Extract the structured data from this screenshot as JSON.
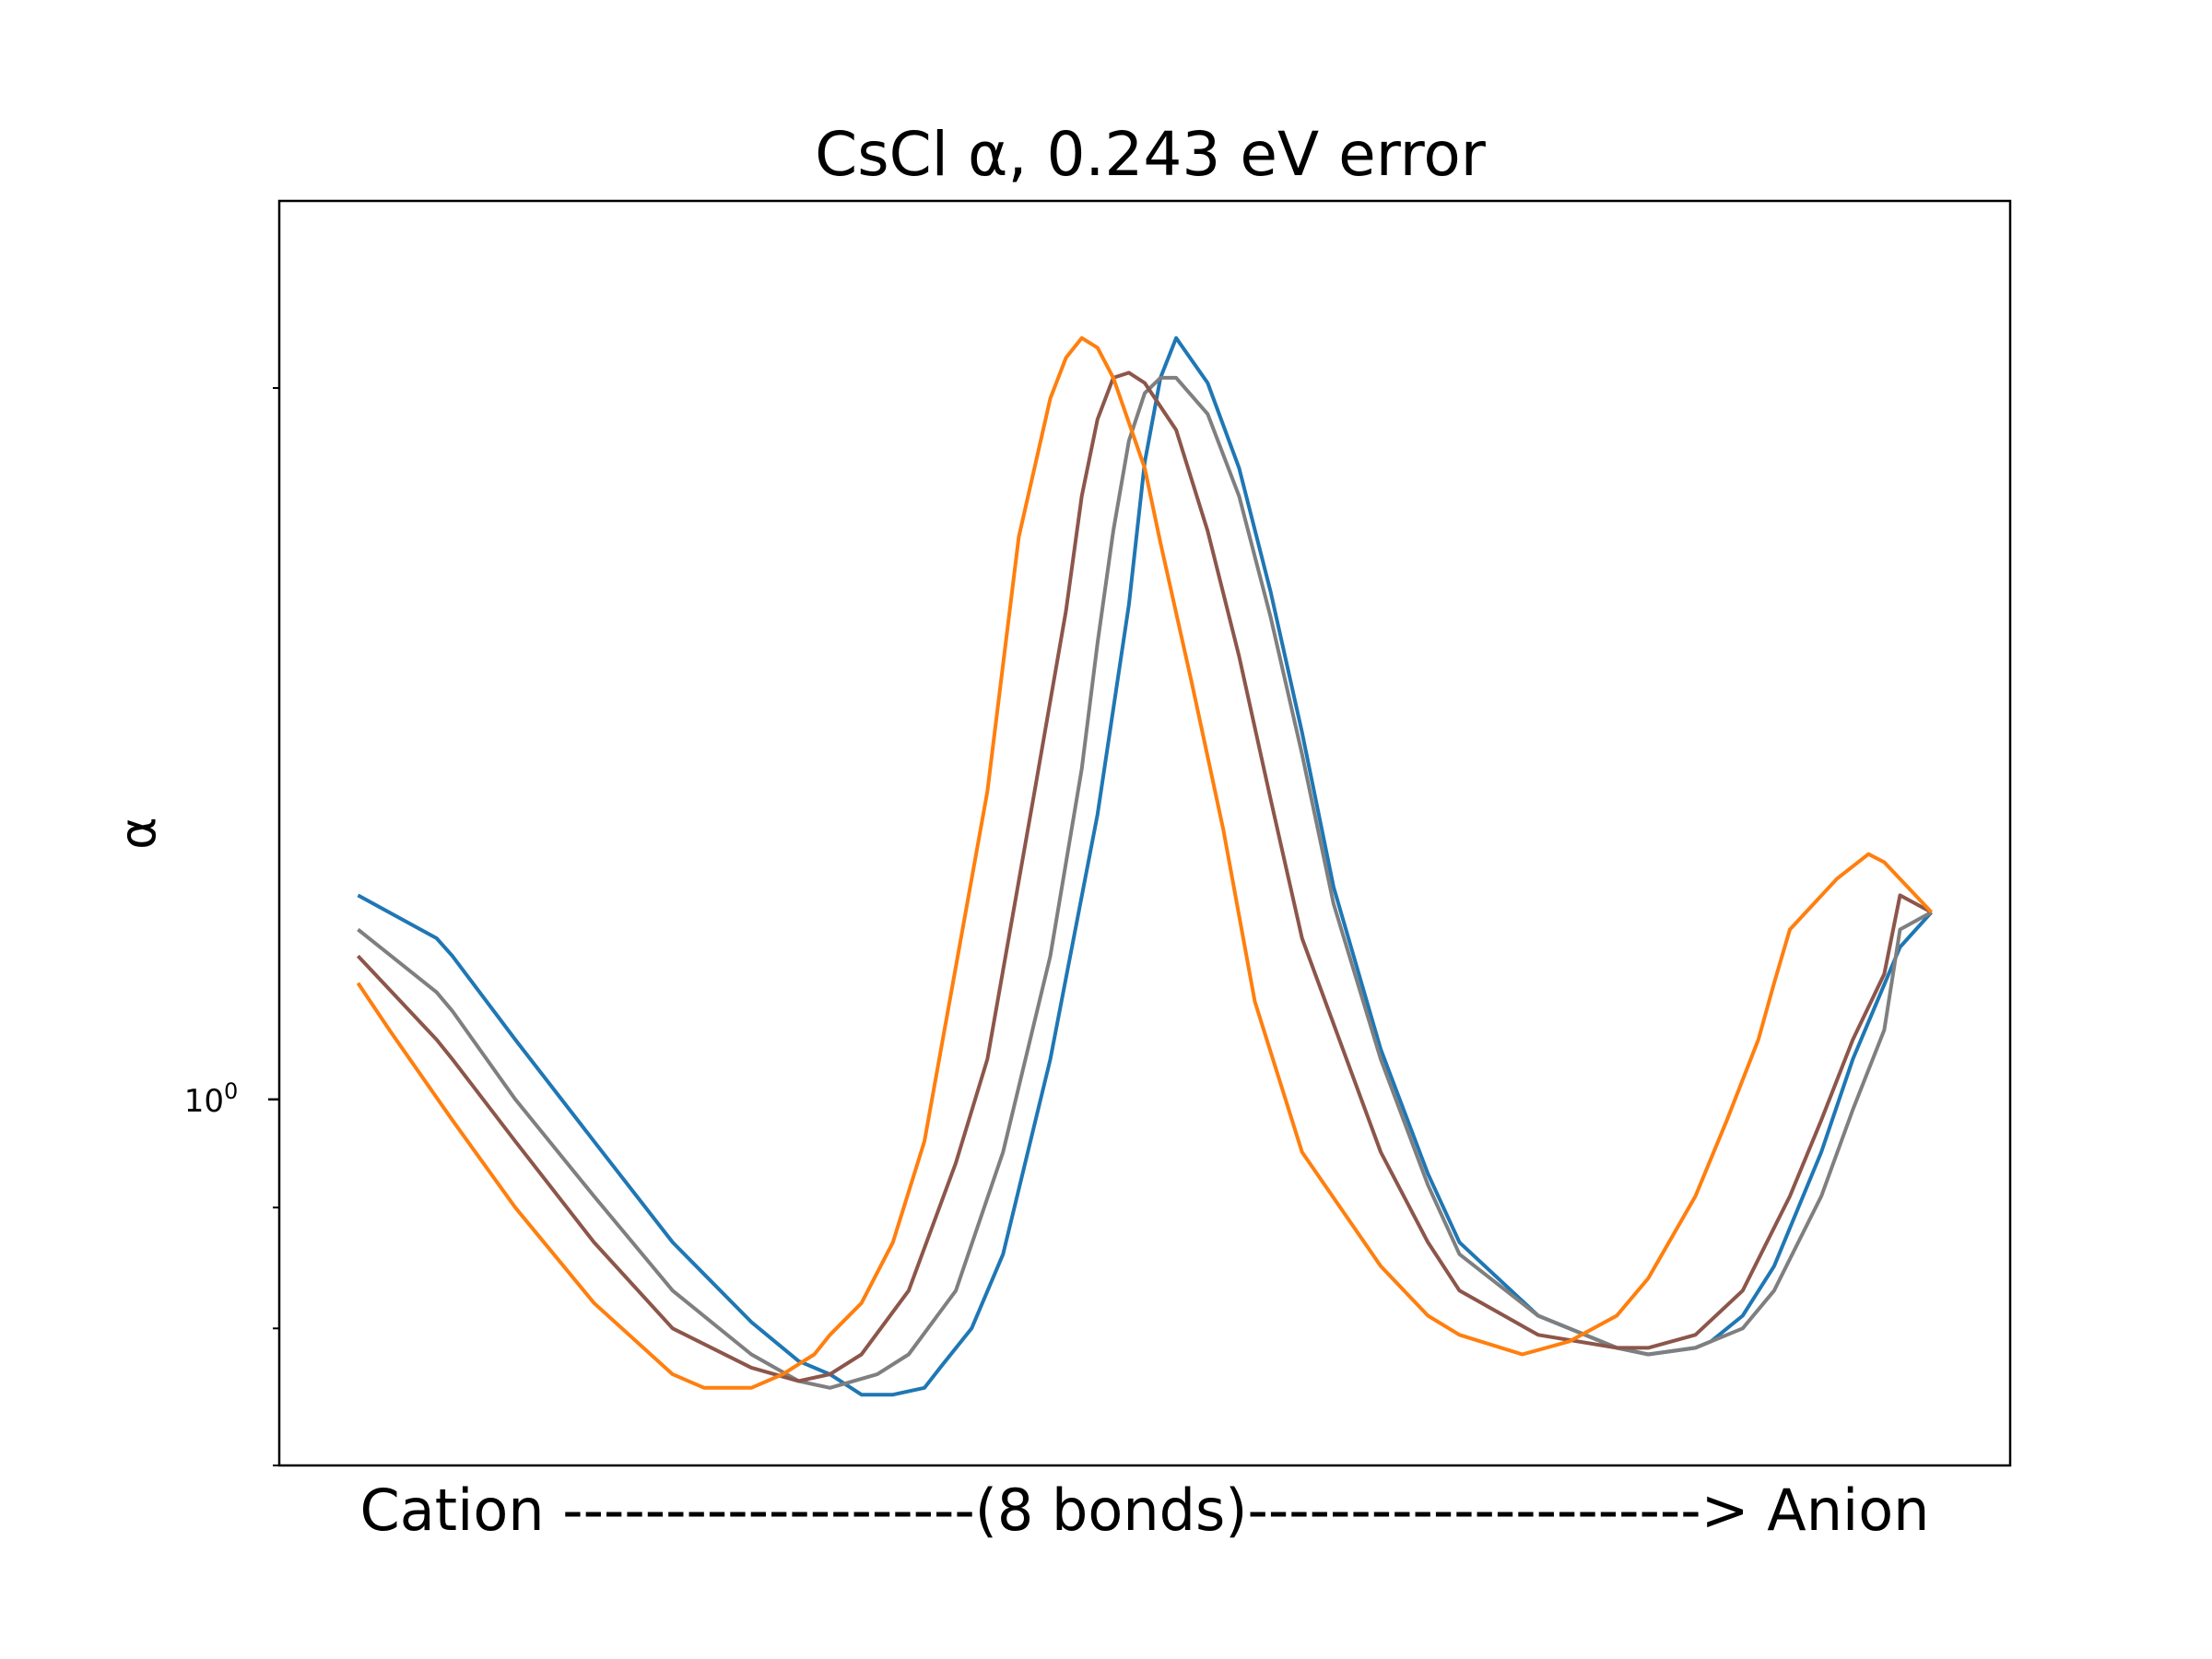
{
  "chart_data": {
    "type": "line",
    "title": "CsCl α, 0.243 eV error",
    "xlabel": "Cation --------------------(8 bonds)----------------------> Anion",
    "ylabel": "α",
    "y_scale": "log",
    "ylim": [
      0.7,
      2.4
    ],
    "xlim": [
      -0.05,
      1.05
    ],
    "y_major_ticks": [
      {
        "value": 1.0,
        "base": "10",
        "exp": "0"
      }
    ],
    "y_minor_ticks": [
      0.7,
      0.8,
      0.9,
      2.0
    ],
    "grid": false,
    "series": [
      {
        "color": "#1f77b4",
        "x": [
          0.0,
          0.05,
          0.06,
          0.1,
          0.15,
          0.2,
          0.25,
          0.28,
          0.3,
          0.32,
          0.34,
          0.36,
          0.37,
          0.39,
          0.41,
          0.44,
          0.47,
          0.49,
          0.5,
          0.51,
          0.52,
          0.54,
          0.56,
          0.58,
          0.6,
          0.62,
          0.65,
          0.68,
          0.7,
          0.75,
          0.8,
          0.82,
          0.85,
          0.86,
          0.88,
          0.9,
          0.93,
          0.95,
          0.98,
          1.0
        ],
        "y": [
          1.22,
          1.17,
          1.15,
          1.06,
          0.96,
          0.87,
          0.805,
          0.775,
          0.765,
          0.75,
          0.75,
          0.755,
          0.77,
          0.8,
          0.86,
          1.04,
          1.32,
          1.62,
          1.86,
          2.02,
          2.1,
          2.01,
          1.85,
          1.64,
          1.43,
          1.23,
          1.05,
          0.93,
          0.87,
          0.81,
          0.785,
          0.78,
          0.785,
          0.79,
          0.81,
          0.85,
          0.95,
          1.04,
          1.16,
          1.2
        ]
      },
      {
        "color": "#7f7f7f",
        "x": [
          0.0,
          0.05,
          0.06,
          0.1,
          0.15,
          0.2,
          0.25,
          0.28,
          0.3,
          0.33,
          0.35,
          0.38,
          0.41,
          0.44,
          0.46,
          0.47,
          0.48,
          0.49,
          0.5,
          0.51,
          0.52,
          0.54,
          0.56,
          0.58,
          0.6,
          0.62,
          0.65,
          0.68,
          0.7,
          0.75,
          0.8,
          0.82,
          0.85,
          0.88,
          0.9,
          0.93,
          0.95,
          0.97,
          0.98,
          1.0
        ],
        "y": [
          1.18,
          1.11,
          1.09,
          1.0,
          0.91,
          0.83,
          0.78,
          0.76,
          0.755,
          0.765,
          0.78,
          0.83,
          0.95,
          1.15,
          1.38,
          1.56,
          1.74,
          1.9,
          1.99,
          2.02,
          2.02,
          1.95,
          1.8,
          1.6,
          1.4,
          1.21,
          1.04,
          0.92,
          0.86,
          0.81,
          0.785,
          0.78,
          0.785,
          0.8,
          0.83,
          0.91,
          0.99,
          1.07,
          1.18,
          1.2
        ]
      },
      {
        "color": "#8c564b",
        "x": [
          0.0,
          0.05,
          0.06,
          0.1,
          0.15,
          0.2,
          0.25,
          0.28,
          0.3,
          0.32,
          0.35,
          0.38,
          0.4,
          0.43,
          0.45,
          0.46,
          0.47,
          0.48,
          0.49,
          0.5,
          0.52,
          0.54,
          0.56,
          0.58,
          0.6,
          0.65,
          0.68,
          0.7,
          0.75,
          0.8,
          0.82,
          0.85,
          0.88,
          0.91,
          0.93,
          0.95,
          0.97,
          0.98,
          1.0
        ],
        "y": [
          1.15,
          1.06,
          1.04,
          0.96,
          0.87,
          0.8,
          0.77,
          0.76,
          0.765,
          0.78,
          0.83,
          0.94,
          1.04,
          1.35,
          1.61,
          1.8,
          1.94,
          2.02,
          2.03,
          2.01,
          1.92,
          1.74,
          1.54,
          1.34,
          1.17,
          0.95,
          0.87,
          0.83,
          0.795,
          0.785,
          0.785,
          0.795,
          0.83,
          0.91,
          0.98,
          1.06,
          1.13,
          1.22,
          1.2
        ]
      },
      {
        "color": "#ff7f0e",
        "x": [
          0.0,
          0.02,
          0.06,
          0.1,
          0.15,
          0.2,
          0.22,
          0.25,
          0.27,
          0.29,
          0.3,
          0.32,
          0.34,
          0.36,
          0.4,
          0.42,
          0.44,
          0.45,
          0.46,
          0.47,
          0.48,
          0.5,
          0.51,
          0.53,
          0.55,
          0.57,
          0.6,
          0.65,
          0.68,
          0.7,
          0.74,
          0.77,
          0.8,
          0.82,
          0.85,
          0.87,
          0.89,
          0.9,
          0.91,
          0.94,
          0.96,
          0.97,
          1.0
        ],
        "y": [
          1.12,
          1.07,
          0.98,
          0.9,
          0.82,
          0.765,
          0.755,
          0.755,
          0.765,
          0.78,
          0.795,
          0.82,
          0.87,
          0.96,
          1.35,
          1.73,
          1.98,
          2.06,
          2.1,
          2.08,
          2.02,
          1.85,
          1.72,
          1.5,
          1.3,
          1.1,
          0.95,
          0.85,
          0.81,
          0.795,
          0.78,
          0.79,
          0.81,
          0.84,
          0.91,
          0.98,
          1.06,
          1.12,
          1.18,
          1.24,
          1.27,
          1.26,
          1.2
        ]
      }
    ]
  }
}
